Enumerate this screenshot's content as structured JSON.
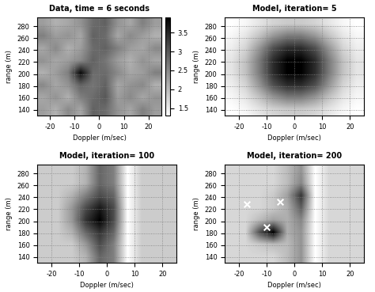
{
  "chart_data": [
    {
      "type": "heatmap",
      "title": "Data, time = 6 seconds",
      "x_label": "Doppler (m/sec)",
      "y_label": "range (m)",
      "xlim": [
        -25,
        25
      ],
      "ylim": [
        130,
        295
      ],
      "xticks": [
        -20,
        -10,
        0,
        10,
        20
      ],
      "yticks": [
        140,
        160,
        180,
        200,
        220,
        240,
        260,
        280
      ],
      "grid": true,
      "cells": [
        [
          2.3,
          2.1,
          2.5,
          2.2,
          2.9,
          2.8,
          2.4,
          2.2,
          2.6,
          2.3
        ],
        [
          2.2,
          2.4,
          2.1,
          2.6,
          2.8,
          3.0,
          2.3,
          2.5,
          2.2,
          2.4
        ],
        [
          2.5,
          2.2,
          2.4,
          2.9,
          2.7,
          2.9,
          2.2,
          2.4,
          2.5,
          2.1
        ],
        [
          2.1,
          2.3,
          2.6,
          3.8,
          2.8,
          2.8,
          2.5,
          2.2,
          2.3,
          2.6
        ],
        [
          2.4,
          2.2,
          2.3,
          2.5,
          2.9,
          2.7,
          2.3,
          2.1,
          2.4,
          2.2
        ],
        [
          2.2,
          2.5,
          2.1,
          2.3,
          2.8,
          2.9,
          2.6,
          2.3,
          2.2,
          2.5
        ],
        [
          2.6,
          2.3,
          2.4,
          2.2,
          2.9,
          2.8,
          2.2,
          2.5,
          2.3,
          2.1
        ],
        [
          2.3,
          2.1,
          2.2,
          2.4,
          2.8,
          2.9,
          2.4,
          2.2,
          2.6,
          2.3
        ]
      ],
      "colorbar": {
        "range": [
          1.3,
          3.9
        ],
        "ticks": [
          1.5,
          2,
          2.5,
          3,
          3.5
        ]
      }
    },
    {
      "type": "heatmap",
      "title": "Model, iteration= 5",
      "x_label": "Doppler (m/sec)",
      "y_label": "range (m)",
      "xlim": [
        -25,
        25
      ],
      "ylim": [
        130,
        295
      ],
      "xticks": [
        -20,
        -10,
        0,
        10,
        20
      ],
      "yticks": [
        140,
        160,
        180,
        200,
        220,
        240,
        260,
        280
      ],
      "grid": true,
      "cells": [
        [
          1.0,
          1.1,
          1.3,
          1.5,
          1.6,
          1.6,
          1.5,
          1.3,
          1.1,
          1.0
        ],
        [
          1.1,
          1.3,
          1.7,
          2.2,
          2.5,
          2.5,
          2.2,
          1.7,
          1.3,
          1.1
        ],
        [
          1.2,
          1.5,
          2.2,
          3.0,
          3.4,
          3.4,
          3.0,
          2.2,
          1.5,
          1.2
        ],
        [
          1.3,
          1.7,
          2.5,
          3.4,
          3.9,
          3.9,
          3.4,
          2.5,
          1.7,
          1.3
        ],
        [
          1.3,
          1.7,
          2.5,
          3.4,
          3.9,
          3.9,
          3.4,
          2.5,
          1.7,
          1.3
        ],
        [
          1.2,
          1.5,
          2.2,
          3.0,
          3.4,
          3.4,
          3.0,
          2.2,
          1.5,
          1.2
        ],
        [
          1.1,
          1.3,
          1.7,
          2.2,
          2.5,
          2.5,
          2.2,
          1.7,
          1.3,
          1.1
        ],
        [
          1.0,
          1.1,
          1.3,
          1.5,
          1.6,
          1.6,
          1.5,
          1.3,
          1.1,
          1.0
        ]
      ]
    },
    {
      "type": "heatmap",
      "title": "Model, iteration= 100",
      "x_label": "Doppler (m/sec)",
      "y_label": "range (m)",
      "xlim": [
        -25,
        25
      ],
      "ylim": [
        130,
        295
      ],
      "xticks": [
        -20,
        -10,
        0,
        10,
        20
      ],
      "yticks": [
        140,
        160,
        180,
        200,
        220,
        240,
        260,
        280
      ],
      "grid": true,
      "cells": [
        [
          2.0,
          2.0,
          2.0,
          2.1,
          2.4,
          2.3,
          1.8,
          2.0,
          2.0,
          2.0
        ],
        [
          2.0,
          2.0,
          2.0,
          2.2,
          2.5,
          2.3,
          1.8,
          2.0,
          2.0,
          2.0
        ],
        [
          2.0,
          2.0,
          2.1,
          2.4,
          2.6,
          2.4,
          1.8,
          2.0,
          2.0,
          2.0
        ],
        [
          2.0,
          2.0,
          2.2,
          2.6,
          2.8,
          2.5,
          1.8,
          2.0,
          2.0,
          2.0
        ],
        [
          2.0,
          2.0,
          2.2,
          2.5,
          2.7,
          2.5,
          1.8,
          2.0,
          2.0,
          2.0
        ],
        [
          2.0,
          2.0,
          2.1,
          2.3,
          2.5,
          2.4,
          1.8,
          2.0,
          2.0,
          2.0
        ],
        [
          2.0,
          2.0,
          2.0,
          2.1,
          2.4,
          2.3,
          1.8,
          2.0,
          2.0,
          2.0
        ],
        [
          2.0,
          2.0,
          2.0,
          2.1,
          2.4,
          2.3,
          1.8,
          2.0,
          2.0,
          2.0
        ]
      ]
    },
    {
      "type": "heatmap",
      "title": "Model, iteration= 200",
      "x_label": "Doppler (m/sec)",
      "y_label": "range (m)",
      "xlim": [
        -25,
        25
      ],
      "ylim": [
        130,
        295
      ],
      "xticks": [
        -20,
        -10,
        0,
        10,
        20
      ],
      "yticks": [
        140,
        160,
        180,
        200,
        220,
        240,
        260,
        280
      ],
      "grid": true,
      "cells": [
        [
          2.0,
          2.0,
          2.0,
          2.0,
          2.2,
          2.5,
          1.7,
          2.0,
          2.0,
          2.0
        ],
        [
          2.0,
          2.0,
          2.1,
          2.2,
          2.2,
          2.5,
          1.7,
          2.0,
          2.0,
          2.0
        ],
        [
          2.0,
          2.0,
          3.0,
          3.6,
          2.3,
          2.5,
          1.7,
          2.0,
          2.0,
          2.0
        ],
        [
          2.0,
          2.0,
          2.2,
          2.4,
          2.3,
          2.6,
          1.7,
          2.0,
          2.0,
          2.0
        ],
        [
          2.0,
          2.0,
          2.0,
          2.1,
          2.3,
          2.9,
          1.7,
          2.0,
          2.0,
          2.0
        ],
        [
          2.0,
          2.0,
          2.0,
          2.1,
          2.4,
          3.2,
          1.7,
          2.0,
          2.0,
          2.0
        ],
        [
          2.0,
          2.0,
          2.0,
          2.0,
          2.2,
          2.6,
          1.7,
          2.0,
          2.0,
          2.0
        ],
        [
          2.0,
          2.0,
          2.0,
          2.0,
          2.2,
          2.5,
          1.7,
          2.0,
          2.0,
          2.0
        ]
      ],
      "points": {
        "x": [
          -17,
          -5,
          -10
        ],
        "y": [
          228,
          232,
          190
        ],
        "marker": "x",
        "color": "white"
      }
    }
  ]
}
